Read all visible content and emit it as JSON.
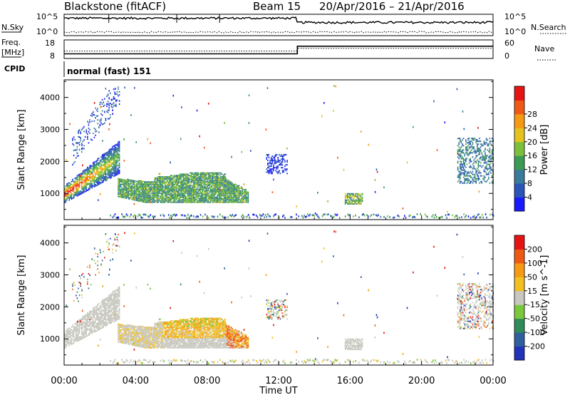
{
  "header": {
    "station": "Blackstone (fitACF)",
    "beam": "Beam 15",
    "date_range": "20/Apr/2016 – 21/Apr/2016"
  },
  "sky_panel": {
    "left_label": "N.Sky",
    "right_label": "N.Search",
    "left_ticks": [
      "10^5",
      "10^0"
    ],
    "right_ticks": [
      "10^5",
      "10^0"
    ]
  },
  "freq_panel": {
    "left_label_1": "Freq.",
    "left_label_2": "[MHz]",
    "right_label": "Nave",
    "left_ticks": [
      "18",
      "8"
    ],
    "right_ticks": [
      "60",
      "0"
    ],
    "freq_series": {
      "x_hours": [
        0,
        13.05,
        13.05,
        24
      ],
      "y_mhz": [
        10.5,
        10.5,
        14.6,
        14.6
      ]
    },
    "nave_series": {
      "x_hours": [
        0,
        13.05,
        13.05,
        24
      ],
      "y": [
        24,
        24,
        33,
        33
      ]
    }
  },
  "cpid_panel": {
    "label": "CPID",
    "mode": "normal (fast) 151"
  },
  "chart_data": [
    {
      "type": "heatmap",
      "parameter": "power",
      "ylabel": "Slant Range [km]",
      "ylim": [
        180,
        4550
      ],
      "yticks": [
        "1000",
        "2000",
        "3000",
        "4000"
      ],
      "colorbar": {
        "label": "Power [dB]",
        "ticks": [
          "4",
          "8",
          "12",
          "16",
          "20",
          "24",
          "28"
        ],
        "colors": [
          "#1a1aff",
          "#2a55b8",
          "#3a7a9a",
          "#3d9a55",
          "#7bbf3a",
          "#e6c21e",
          "#f59a12",
          "#ee5a14",
          "#e41414"
        ]
      }
    },
    {
      "type": "heatmap",
      "parameter": "velocity",
      "ylabel": "Slant Range [km]",
      "ylim": [
        180,
        4550
      ],
      "yticks": [
        "1000",
        "2000",
        "3000",
        "4000"
      ],
      "colorbar": {
        "label": "Velocity [m s^-1]",
        "ticks": [
          "200",
          "100",
          "50",
          "15",
          "-15",
          "-50",
          "-100",
          "-200"
        ],
        "colors": [
          "#2233bb",
          "#2f5f9e",
          "#2f8c5a",
          "#7ac83b",
          "#c8c8c0",
          "#f2c020",
          "#f59a12",
          "#ee5a14",
          "#e41414"
        ]
      }
    }
  ],
  "x_axis": {
    "title": "Time UT",
    "ticks": [
      "00:00",
      "04:00",
      "08:00",
      "12:00",
      "16:00",
      "20:00",
      "00:00"
    ]
  },
  "colors": {
    "ground_scatter": "#c8c8c0"
  }
}
